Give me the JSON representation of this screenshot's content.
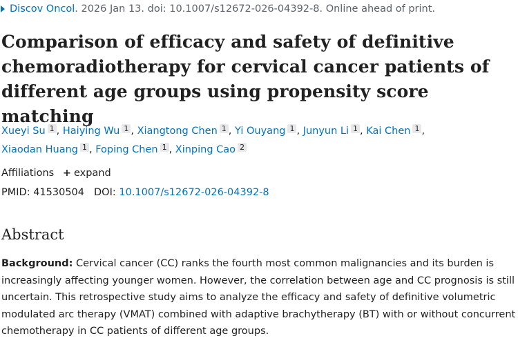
{
  "citation": {
    "journal": "Discov Oncol",
    "rest": ". 2026 Jan 13. doi: 10.1007/s12672-026-04392-8. Online ahead of print."
  },
  "title": "Comparison of efficacy and safety of definitive chemoradiotherapy for cervical cancer patients of different age groups using propensity score matching",
  "authors": [
    {
      "name": "Xueyi Su",
      "aff": "1"
    },
    {
      "name": "Haiying Wu",
      "aff": "1"
    },
    {
      "name": "Xiangtong Chen",
      "aff": "1"
    },
    {
      "name": "Yi Ouyang",
      "aff": "1"
    },
    {
      "name": "Junyun Li",
      "aff": "1"
    },
    {
      "name": "Kai Chen",
      "aff": "1"
    },
    {
      "name": "Xiaodan Huang",
      "aff": "1"
    },
    {
      "name": "Foping Chen",
      "aff": "1"
    },
    {
      "name": "Xinping Cao",
      "aff": "2"
    }
  ],
  "affiliations": {
    "label": "Affiliations",
    "expand_label": "expand"
  },
  "identifiers": {
    "pmid_label": "PMID:",
    "pmid": "41530504",
    "doi_label": "DOI:",
    "doi": "10.1007/s12672-026-04392-8"
  },
  "abstract": {
    "heading": "Abstract",
    "background_label": "Background:",
    "background_text": "Cervical cancer (CC) ranks the fourth most common malignancies and its burden is increasingly affecting younger women. However, the correlation between age and CC prognosis is still uncertain. This retrospective study aims to analyze the efficacy and safety of definitive volumetric modulated arc therapy (VMAT) combined with adaptive brachytherapy (BT) with or without concurrent chemotherapy in CC patients of different age groups."
  },
  "colors": {
    "link": "#0071bc",
    "text": "#212121",
    "muted": "#5b616b"
  }
}
